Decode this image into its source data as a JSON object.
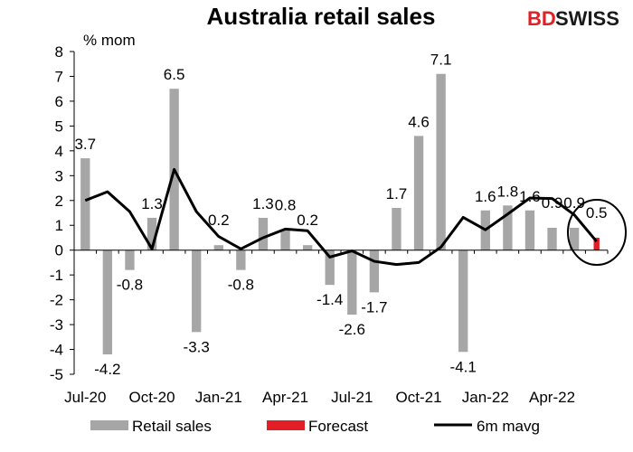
{
  "brand": {
    "part1": "BD",
    "part2": "SWISS",
    "color_primary": "#e21e26",
    "color_secondary": "#1a1a1a"
  },
  "chart_data": {
    "type": "bar",
    "title": "Australia retail sales",
    "ylabel": "% mom",
    "ylim": [
      -5,
      8
    ],
    "yticks": [
      8,
      7,
      6,
      5,
      4,
      3,
      2,
      1,
      0,
      -1,
      -2,
      -3,
      -4,
      -5
    ],
    "x_tick_labels": [
      "Jul-20",
      "Oct-20",
      "Jan-21",
      "Apr-21",
      "Jul-21",
      "Oct-21",
      "Jan-22",
      "Apr-22"
    ],
    "months": [
      "Jul-20",
      "Aug-20",
      "Sep-20",
      "Oct-20",
      "Nov-20",
      "Dec-20",
      "Jan-21",
      "Feb-21",
      "Mar-21",
      "Apr-21",
      "May-21",
      "Jun-21",
      "Jul-21",
      "Aug-21",
      "Sep-21",
      "Oct-21",
      "Nov-21",
      "Dec-21",
      "Jan-22",
      "Feb-22",
      "Mar-22",
      "Apr-22",
      "May-22",
      "Jun-22"
    ],
    "series": [
      {
        "name": "Retail sales",
        "color": "#a6a6a6",
        "values": [
          3.7,
          -4.2,
          -0.8,
          1.3,
          6.5,
          -3.3,
          0.2,
          -0.8,
          1.3,
          0.8,
          0.2,
          -1.4,
          -2.6,
          -1.7,
          1.7,
          4.6,
          7.1,
          -4.1,
          1.6,
          1.8,
          1.6,
          0.9,
          0.9,
          null
        ]
      },
      {
        "name": "Forecast",
        "color": "#e21e26",
        "values": [
          null,
          null,
          null,
          null,
          null,
          null,
          null,
          null,
          null,
          null,
          null,
          null,
          null,
          null,
          null,
          null,
          null,
          null,
          null,
          null,
          null,
          null,
          null,
          0.5
        ]
      },
      {
        "name": "6m mavg",
        "color": "#000000",
        "values": [
          2.0,
          2.35,
          1.55,
          0.05,
          3.25,
          1.55,
          0.55,
          0.05,
          0.5,
          0.85,
          0.78,
          -0.28,
          -0.03,
          -0.45,
          -0.58,
          -0.5,
          0.12,
          1.32,
          0.82,
          1.45,
          2.1,
          2.08,
          1.42,
          0.35
        ]
      }
    ],
    "data_labels": [
      "3.7",
      "-4.2",
      "-0.8",
      "1.3",
      "6.5",
      "-3.3",
      "0.2",
      "-0.8",
      "1.3",
      "0.8",
      "0.2",
      "-1.4",
      "-2.6",
      "-1.7",
      "1.7",
      "4.6",
      "7.1",
      "-4.1",
      "1.6",
      "1.8",
      "1.6",
      "0.9",
      "0.9",
      "0.5"
    ],
    "legend": [
      "Retail sales",
      "Forecast",
      "6m mavg"
    ],
    "legend_position": "bottom",
    "annotation": "circle around forecast"
  }
}
